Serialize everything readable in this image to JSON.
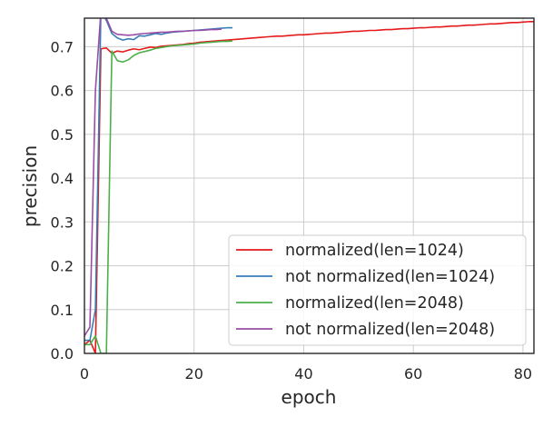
{
  "chart_data": {
    "type": "line",
    "title": "",
    "xlabel": "epoch",
    "ylabel": "precision",
    "xlim": [
      0,
      82
    ],
    "ylim": [
      0,
      0.765
    ],
    "xticks": [
      0,
      20,
      40,
      60,
      80
    ],
    "yticks": [
      0.0,
      0.1,
      0.2,
      0.3,
      0.4,
      0.5,
      0.6,
      0.7
    ],
    "xtick_labels": [
      "0",
      "20",
      "40",
      "60",
      "80"
    ],
    "ytick_labels": [
      "0.0",
      "0.1",
      "0.2",
      "0.3",
      "0.4",
      "0.5",
      "0.6",
      "0.7"
    ],
    "grid": true,
    "legend_position": "lower-right",
    "series": [
      {
        "name": "normalized(len=1024)",
        "color": "#e41a1c",
        "x": [
          0,
          1,
          2,
          3,
          4,
          5,
          6,
          7,
          8,
          9,
          10,
          11,
          12,
          13,
          14,
          15,
          16,
          17,
          18,
          19,
          20,
          21,
          22,
          23,
          24,
          25,
          26,
          27,
          28,
          29,
          30,
          31,
          32,
          33,
          34,
          35,
          36,
          37,
          38,
          39,
          40,
          41,
          42,
          43,
          44,
          45,
          46,
          47,
          48,
          49,
          50,
          51,
          52,
          53,
          54,
          55,
          56,
          57,
          58,
          59,
          60,
          61,
          62,
          63,
          64,
          65,
          66,
          67,
          68,
          69,
          70,
          71,
          72,
          73,
          74,
          75,
          76,
          77,
          78,
          79,
          80,
          81,
          82
        ],
        "y": [
          0.02,
          0.03,
          0.0,
          0.695,
          0.697,
          0.685,
          0.69,
          0.688,
          0.692,
          0.695,
          0.693,
          0.696,
          0.699,
          0.698,
          0.701,
          0.702,
          0.703,
          0.704,
          0.705,
          0.707,
          0.708,
          0.71,
          0.711,
          0.712,
          0.713,
          0.714,
          0.715,
          0.716,
          0.717,
          0.718,
          0.719,
          0.72,
          0.721,
          0.722,
          0.723,
          0.724,
          0.724,
          0.725,
          0.726,
          0.727,
          0.727,
          0.728,
          0.729,
          0.73,
          0.731,
          0.731,
          0.732,
          0.733,
          0.734,
          0.735,
          0.735,
          0.736,
          0.737,
          0.737,
          0.738,
          0.739,
          0.739,
          0.74,
          0.741,
          0.741,
          0.742,
          0.743,
          0.743,
          0.744,
          0.745,
          0.745,
          0.746,
          0.747,
          0.747,
          0.748,
          0.749,
          0.749,
          0.75,
          0.751,
          0.752,
          0.752,
          0.753,
          0.754,
          0.755,
          0.755,
          0.756,
          0.757,
          0.757
        ]
      },
      {
        "name": "not normalized(len=1024)",
        "color": "#377eb8",
        "x": [
          0,
          1,
          2,
          3,
          4,
          5,
          6,
          7,
          8,
          9,
          10,
          11,
          12,
          13,
          14,
          15,
          16,
          17,
          18,
          19,
          20,
          21,
          22,
          23,
          24,
          25,
          26,
          27
        ],
        "y": [
          0.03,
          0.03,
          0.1,
          0.78,
          0.76,
          0.73,
          0.72,
          0.715,
          0.718,
          0.716,
          0.725,
          0.724,
          0.727,
          0.73,
          0.728,
          0.731,
          0.733,
          0.734,
          0.735,
          0.736,
          0.737,
          0.738,
          0.739,
          0.74,
          0.741,
          0.742,
          0.743,
          0.743
        ]
      },
      {
        "name": "normalized(len=2048)",
        "color": "#4daf4a",
        "x": [
          0,
          1,
          2,
          3,
          4,
          5,
          6,
          7,
          8,
          9,
          10,
          11,
          12,
          13,
          14,
          15,
          16,
          17,
          18,
          19,
          20,
          21,
          22,
          23,
          24,
          25,
          26,
          27
        ],
        "y": [
          0.02,
          0.02,
          0.04,
          0.0,
          0.0,
          0.69,
          0.668,
          0.665,
          0.67,
          0.68,
          0.686,
          0.689,
          0.692,
          0.696,
          0.698,
          0.7,
          0.702,
          0.703,
          0.704,
          0.705,
          0.706,
          0.708,
          0.709,
          0.71,
          0.711,
          0.712,
          0.712,
          0.713
        ]
      },
      {
        "name": "not normalized(len=2048)",
        "color": "#984ea3",
        "x": [
          0,
          1,
          2,
          3,
          4,
          5,
          6,
          7,
          8,
          9,
          10,
          11,
          12,
          13,
          14,
          15,
          16,
          17,
          18,
          19,
          20,
          21,
          22,
          23,
          24,
          25
        ],
        "y": [
          0.04,
          0.06,
          0.6,
          0.78,
          0.765,
          0.735,
          0.728,
          0.727,
          0.726,
          0.727,
          0.729,
          0.73,
          0.731,
          0.732,
          0.733,
          0.733,
          0.734,
          0.735,
          0.735,
          0.736,
          0.737,
          0.737,
          0.738,
          0.739,
          0.739,
          0.74
        ]
      }
    ]
  }
}
